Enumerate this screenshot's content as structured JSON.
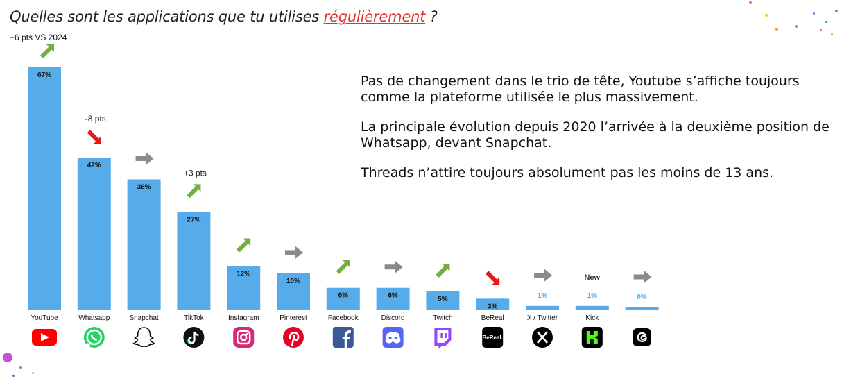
{
  "title": {
    "prefix": "Quelles sont les applications que tu utilises ",
    "highlight": "régulièrement",
    "suffix": " ?"
  },
  "subtitle": "+6 pts VS 2024",
  "commentary": [
    "Pas de changement dans le trio de tête, Youtube s’affiche toujours comme la plateforme utilisée le plus massivement.",
    "La principale évolution depuis 2020 l’arrivée à la deuxième position de Whatsapp, devant Snapchat.",
    "Threads n’attire toujours absolument pas les moins de 13 ans."
  ],
  "colors": {
    "bar": "#56acea",
    "up": "#71b040",
    "down": "#e61818",
    "flat": "#8a8a8a",
    "highlight": "#e2342d"
  },
  "chart_data": {
    "type": "bar",
    "categories": [
      "YouTube",
      "Whatsapp",
      "Snapchat",
      "TikTok",
      "Instagram",
      "Pinterest",
      "Facebook",
      "Discord",
      "Twitch",
      "BeReal",
      "X / Twitter",
      "Kick",
      " "
    ],
    "values": [
      67,
      42,
      36,
      27,
      12,
      10,
      6,
      6,
      5,
      3,
      1,
      1,
      0
    ],
    "data_labels": [
      "67%",
      "42%",
      "36%",
      "27%",
      "12%",
      "10%",
      "6%",
      "6%",
      "5%",
      "3%",
      "1%",
      "1%",
      "0%"
    ],
    "trends": [
      "up",
      "down",
      "flat",
      "up",
      "up",
      "flat",
      "up",
      "flat",
      "up",
      "down",
      "flat",
      "new",
      "flat"
    ],
    "trend_labels": [
      "",
      "-8 pts",
      "",
      "+3 pts",
      "",
      "",
      "",
      "",
      "",
      "",
      "",
      "New",
      ""
    ],
    "icons": [
      "youtube-icon",
      "whatsapp-icon",
      "snapchat-icon",
      "tiktok-icon",
      "instagram-icon",
      "pinterest-icon",
      "facebook-icon",
      "discord-icon",
      "twitch-icon",
      "bereal-icon",
      "x-twitter-icon",
      "kick-icon",
      "threads-icon"
    ],
    "icon_text": {
      "bereal": "BeReal."
    },
    "ylim": [
      0,
      70
    ],
    "grid": false,
    "legend": "none"
  }
}
